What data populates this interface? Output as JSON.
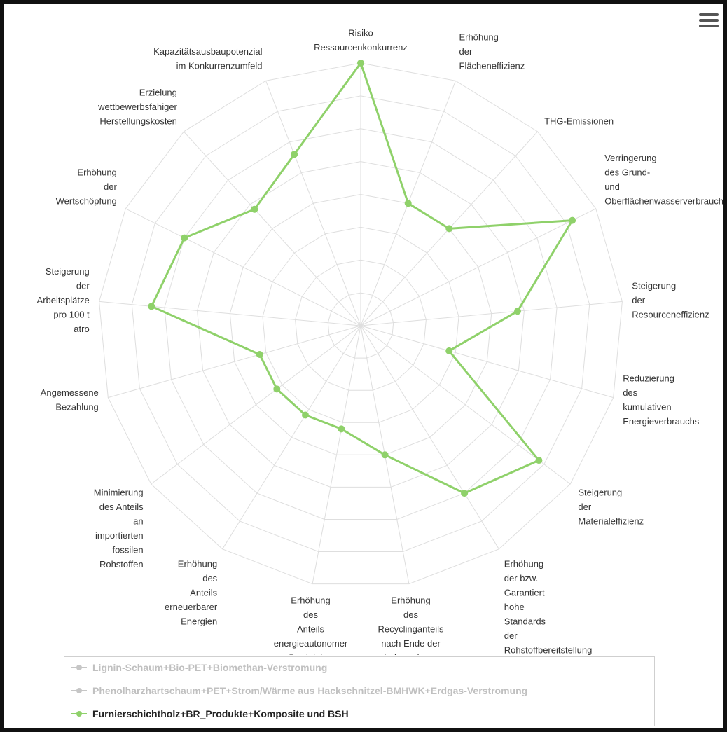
{
  "chart_data": {
    "type": "radar",
    "axes": [
      "Risiko\nRessourcenkonkurrenz",
      "Erhöhung\nder\nFlächeneffizienz",
      "THG-Emissionen",
      "Verringerung\ndes Grund-\nund\nOberflächenwasserverbrauchs",
      "Steigerung\nder\nResourceneffizienz",
      "Reduzierung\ndes\nkumulativen\nEnergieverbrauchs",
      "Steigerung\nder\nMaterialeffizienz",
      "Erhöhung\nder bzw.\nGarantiert\nhohe\nStandards\nder\nRohstoffbereitstellung",
      "Erhöhung\ndes\nRecyclinganteils\nnach Ende der\nLebensdauer",
      "Erhöhung\ndes\nAnteils\nenergieautonomer\nProduktion",
      "Erhöhung\ndes\nAnteils\nerneuerbarer\nEnergien",
      "Minimierung\ndes Anteils\nan\nimportierten\nfossilen\nRohstoffen",
      "Angemessene\nBezahlung",
      "Steigerung\nder\nArbeitsplätze\npro 100 t\natro",
      "Erhöhung\nder\nWertschöpfung",
      "Erzielung\nwettbewerbsfähiger\nHerstellungskosten",
      "Kapazitätsausbaupotenzial\nim Konkurrenzumfeld"
    ],
    "rmax": 1,
    "grid": true,
    "legend_position": "bottom",
    "series": [
      {
        "name": "Lignin-Schaum+Bio-PET+Biomethan-Verstromung",
        "visible": false,
        "color": "#c6c6c6",
        "values": []
      },
      {
        "name": "Phenolharzhartschaum+PET+Strom/Wärme aus Hackschnitzel-BMHWK+Erdgas-Verstromung",
        "visible": false,
        "color": "#c6c6c6",
        "values": []
      },
      {
        "name": "Furnierschichtholz+BR_Produkte+Komposite und BSH",
        "visible": true,
        "color": "#8fd16a",
        "values": [
          1.0,
          0.5,
          0.5,
          0.9,
          0.6,
          0.35,
          0.85,
          0.75,
          0.5,
          0.4,
          0.4,
          0.4,
          0.4,
          0.8,
          0.75,
          0.6,
          0.7
        ]
      }
    ]
  },
  "legend": {
    "items": [
      {
        "label": "Lignin-Schaum+Bio-PET+Biomethan-Verstromung",
        "color": "#c6c6c6",
        "text_color": "#c0c0c0"
      },
      {
        "label": "Phenolharzhartschaum+PET+Strom/Wärme aus Hackschnitzel-BMHWK+Erdgas-Verstromung",
        "color": "#c6c6c6",
        "text_color": "#c0c0c0"
      },
      {
        "label": "Furnierschichtholz+BR_Produkte+Komposite und BSH",
        "color": "#8fd16a",
        "text_color": "#222222"
      }
    ]
  },
  "menu_icon": "hamburger-menu-icon"
}
